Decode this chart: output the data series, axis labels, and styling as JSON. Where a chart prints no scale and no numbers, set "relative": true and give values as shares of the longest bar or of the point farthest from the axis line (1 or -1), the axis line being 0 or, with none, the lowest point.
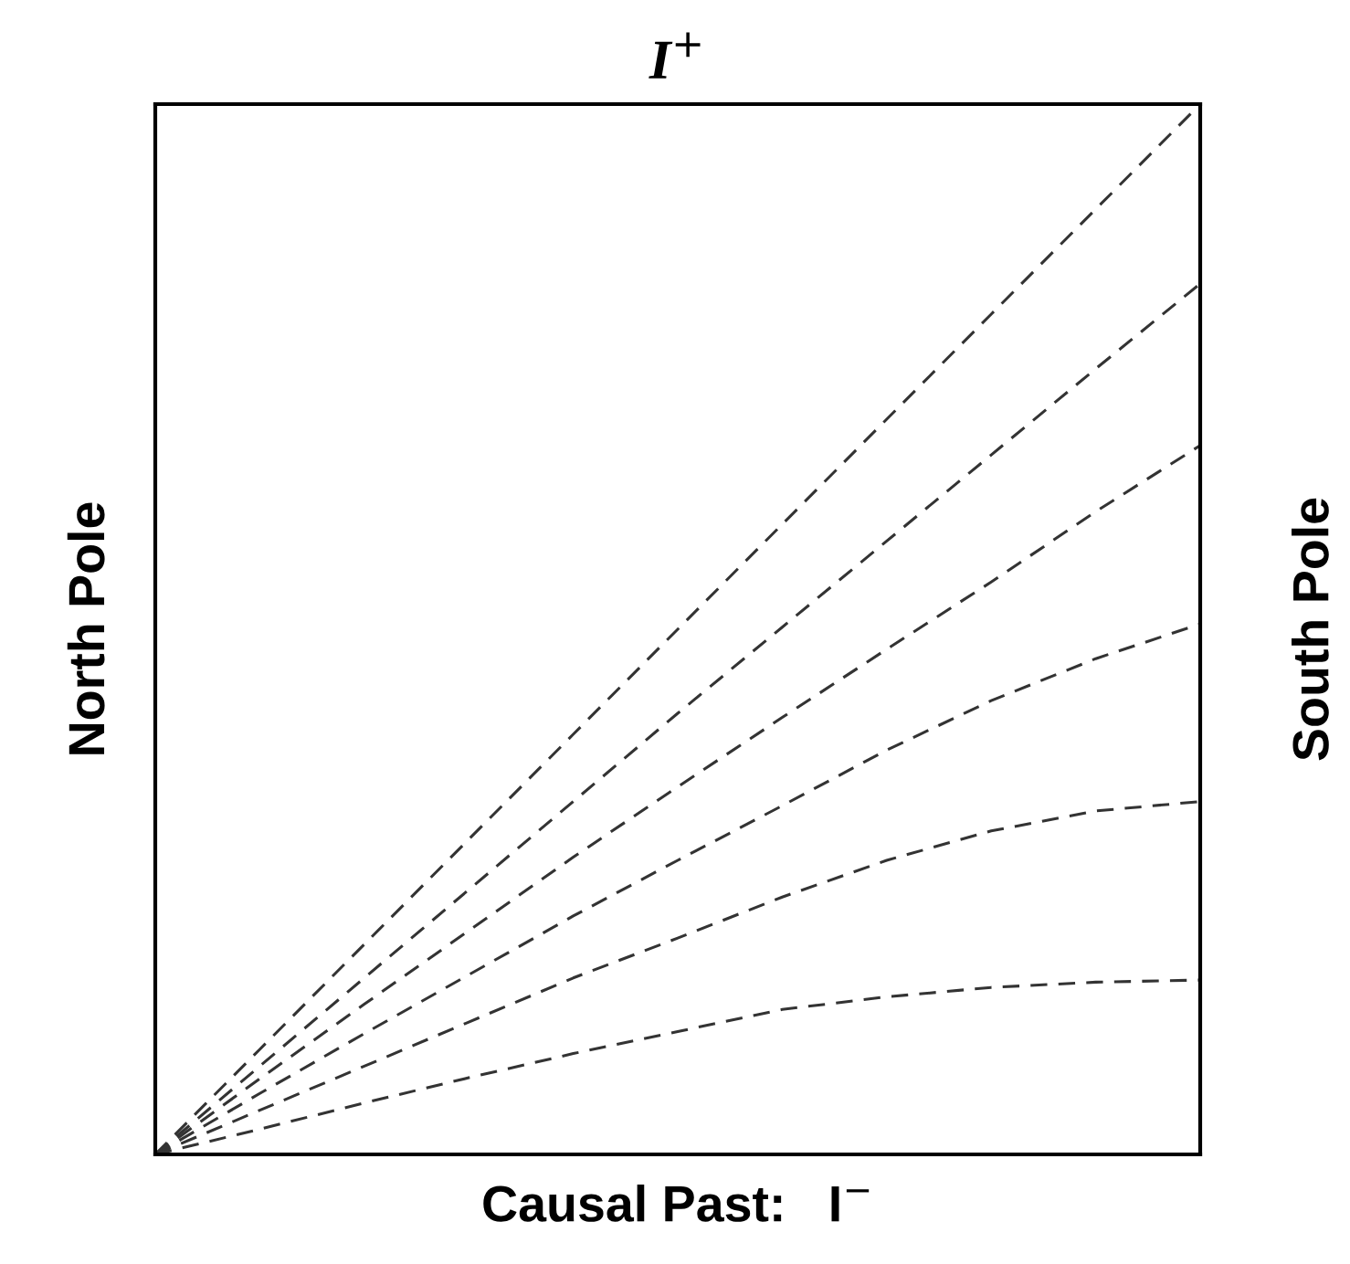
{
  "chart_data": {
    "type": "line",
    "relative": true,
    "title": "I$^{+}$",
    "xlabel": "Causal Past:   I$^{−}$",
    "ylabel": "North Pole",
    "y2label": "South Pole",
    "categories": [
      null,
      null,
      null,
      null,
      null,
      null,
      null,
      null,
      null,
      null,
      null
    ],
    "line_style": "dashed",
    "marker": "none",
    "tick_labels": false,
    "series": [
      {
        "color": "#333333",
        "values": [
          0,
          0.1,
          0.2,
          0.3,
          0.4,
          0.5,
          0.6,
          0.7,
          0.8,
          0.9,
          1
        ]
      },
      {
        "color": "#333333",
        "values": [
          0,
          0.084,
          0.168,
          0.252,
          0.336,
          0.42,
          0.502,
          0.584,
          0.666,
          0.748,
          0.829
        ]
      },
      {
        "color": "#333333",
        "values": [
          0,
          0.072,
          0.143,
          0.213,
          0.283,
          0.35,
          0.416,
          0.481,
          0.545,
          0.612,
          0.675
        ]
      },
      {
        "color": "#333333",
        "values": [
          0,
          0.058,
          0.115,
          0.171,
          0.227,
          0.28,
          0.332,
          0.385,
          0.432,
          0.472,
          0.505
        ]
      },
      {
        "color": "#333333",
        "values": [
          0,
          0.042,
          0.084,
          0.126,
          0.168,
          0.206,
          0.245,
          0.28,
          0.308,
          0.327,
          0.336
        ]
      },
      {
        "color": "#333333",
        "values": [
          0,
          0.024,
          0.049,
          0.073,
          0.096,
          0.117,
          0.138,
          0.15,
          0.159,
          0.164,
          0.166
        ]
      }
    ]
  }
}
